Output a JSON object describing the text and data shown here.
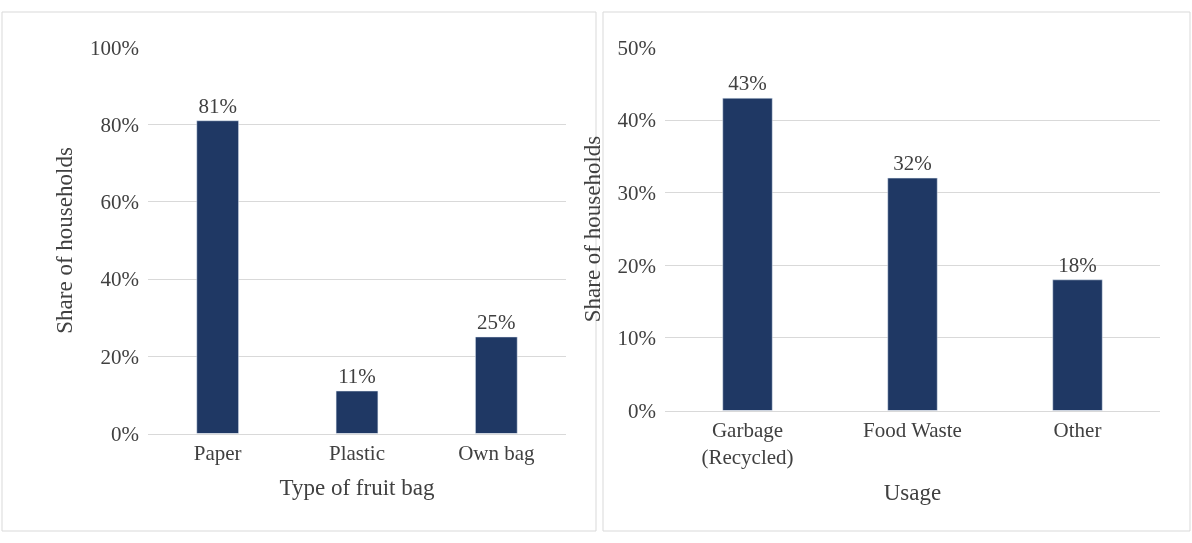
{
  "chart_data": [
    {
      "type": "bar",
      "categories": [
        "Paper",
        "Plastic",
        "Own bag"
      ],
      "values": [
        81,
        11,
        25
      ],
      "value_labels": [
        "81%",
        "11%",
        "25%"
      ],
      "color": "#1f3864",
      "xlabel": "Type of fruit bag",
      "ylabel": "Share of households",
      "ylim": [
        0,
        100
      ],
      "yticks": [
        {
          "value": 0,
          "label": "0%"
        },
        {
          "value": 20,
          "label": "20%"
        },
        {
          "value": 40,
          "label": "40%"
        },
        {
          "value": 60,
          "label": "60%"
        },
        {
          "value": 80,
          "label": "80%"
        },
        {
          "value": 100,
          "label": "100%"
        }
      ],
      "grid": "y"
    },
    {
      "type": "bar",
      "categories": [
        "Garbage\n(Recycled)",
        "Food Waste",
        "Other"
      ],
      "values": [
        43,
        32,
        18
      ],
      "value_labels": [
        "43%",
        "32%",
        "18%"
      ],
      "color": "#1f3864",
      "xlabel": "Usage",
      "ylabel": "Share of households",
      "ylim": [
        0,
        50
      ],
      "yticks": [
        {
          "value": 0,
          "label": "0%"
        },
        {
          "value": 10,
          "label": "10%"
        },
        {
          "value": 20,
          "label": "20%"
        },
        {
          "value": 30,
          "label": "30%"
        },
        {
          "value": 40,
          "label": "40%"
        },
        {
          "value": 50,
          "label": "50%"
        }
      ],
      "grid": "y"
    }
  ]
}
